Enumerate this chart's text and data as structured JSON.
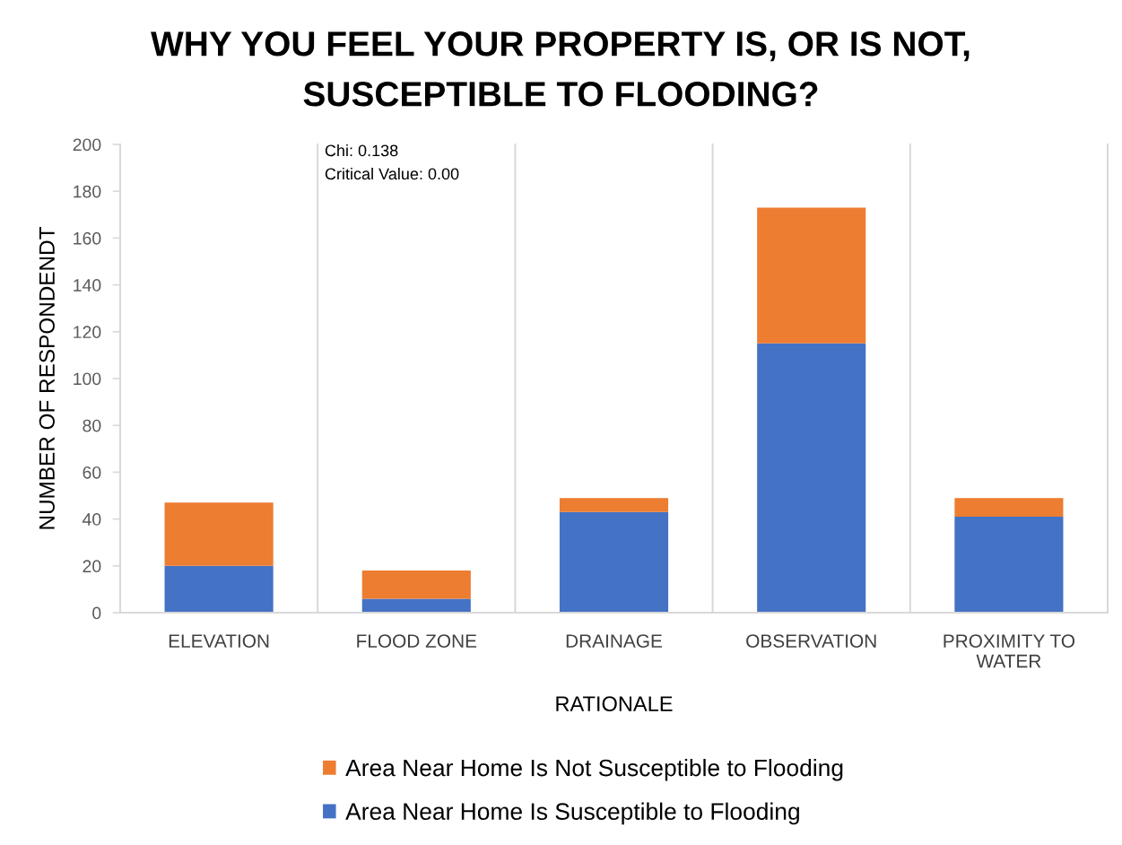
{
  "chart_data": {
    "type": "bar",
    "stacked": true,
    "title": "WHY YOU FEEL YOUR PROPERTY IS, OR IS NOT, SUSCEPTIBLE TO FLOODING?",
    "xlabel": "RATIONALE",
    "ylabel": "NUMBER OF RESPONDENDT",
    "categories": [
      "ELEVATION",
      "FLOOD ZONE",
      "DRAINAGE",
      "OBSERVATION",
      "PROXIMITY TO WATER"
    ],
    "series": [
      {
        "name": "Area Near Home Is Susceptible to Flooding",
        "color": "#4472c4",
        "values": [
          20,
          6,
          43,
          115,
          41
        ]
      },
      {
        "name": "Area Near Home Is Not Susceptible to Flooding",
        "color": "#ed7d31",
        "values": [
          27,
          12,
          6,
          58,
          8
        ]
      }
    ],
    "ylim": [
      0,
      200
    ],
    "yticks": [
      0,
      20,
      40,
      60,
      80,
      100,
      120,
      140,
      160,
      180,
      200
    ],
    "grid": "x",
    "legend": "bottom",
    "annotations": [
      "Chi: 0.138",
      "Critical Value: 0.00"
    ]
  }
}
